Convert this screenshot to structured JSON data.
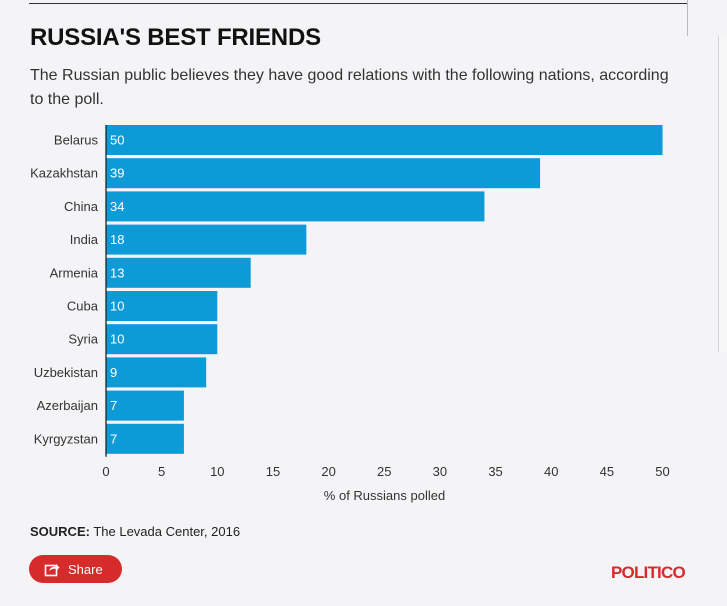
{
  "header": {
    "title": "RUSSIA'S BEST FRIENDS",
    "subtitle": "The Russian public believes they have good relations with the following nations, according to the poll."
  },
  "footer": {
    "source_label": "SOURCE:",
    "source_text": " The Levada Center, 2016",
    "share_label": "Share",
    "share_icon": "share-icon",
    "logo": "POLITICO"
  },
  "colors": {
    "bar": "#0d9bd8",
    "accent": "#d52b2b"
  },
  "chart_data": {
    "type": "bar",
    "orientation": "horizontal",
    "categories": [
      "Belarus",
      "Kazakhstan",
      "China",
      "India",
      "Armenia",
      "Cuba",
      "Syria",
      "Uzbekistan",
      "Azerbaijan",
      "Kyrgyzstan"
    ],
    "values": [
      50,
      39,
      34,
      18,
      13,
      10,
      10,
      9,
      7,
      7
    ],
    "data_labels": [
      "50",
      "39",
      "34",
      "18",
      "13",
      "10",
      "10",
      "9",
      "7",
      "7"
    ],
    "xlabel": "% of Russians polled",
    "xlim": [
      0,
      51.3
    ],
    "xticks": [
      0,
      5,
      10,
      15,
      20,
      25,
      30,
      35,
      40,
      45,
      50
    ],
    "grid": false,
    "legend": "none"
  }
}
